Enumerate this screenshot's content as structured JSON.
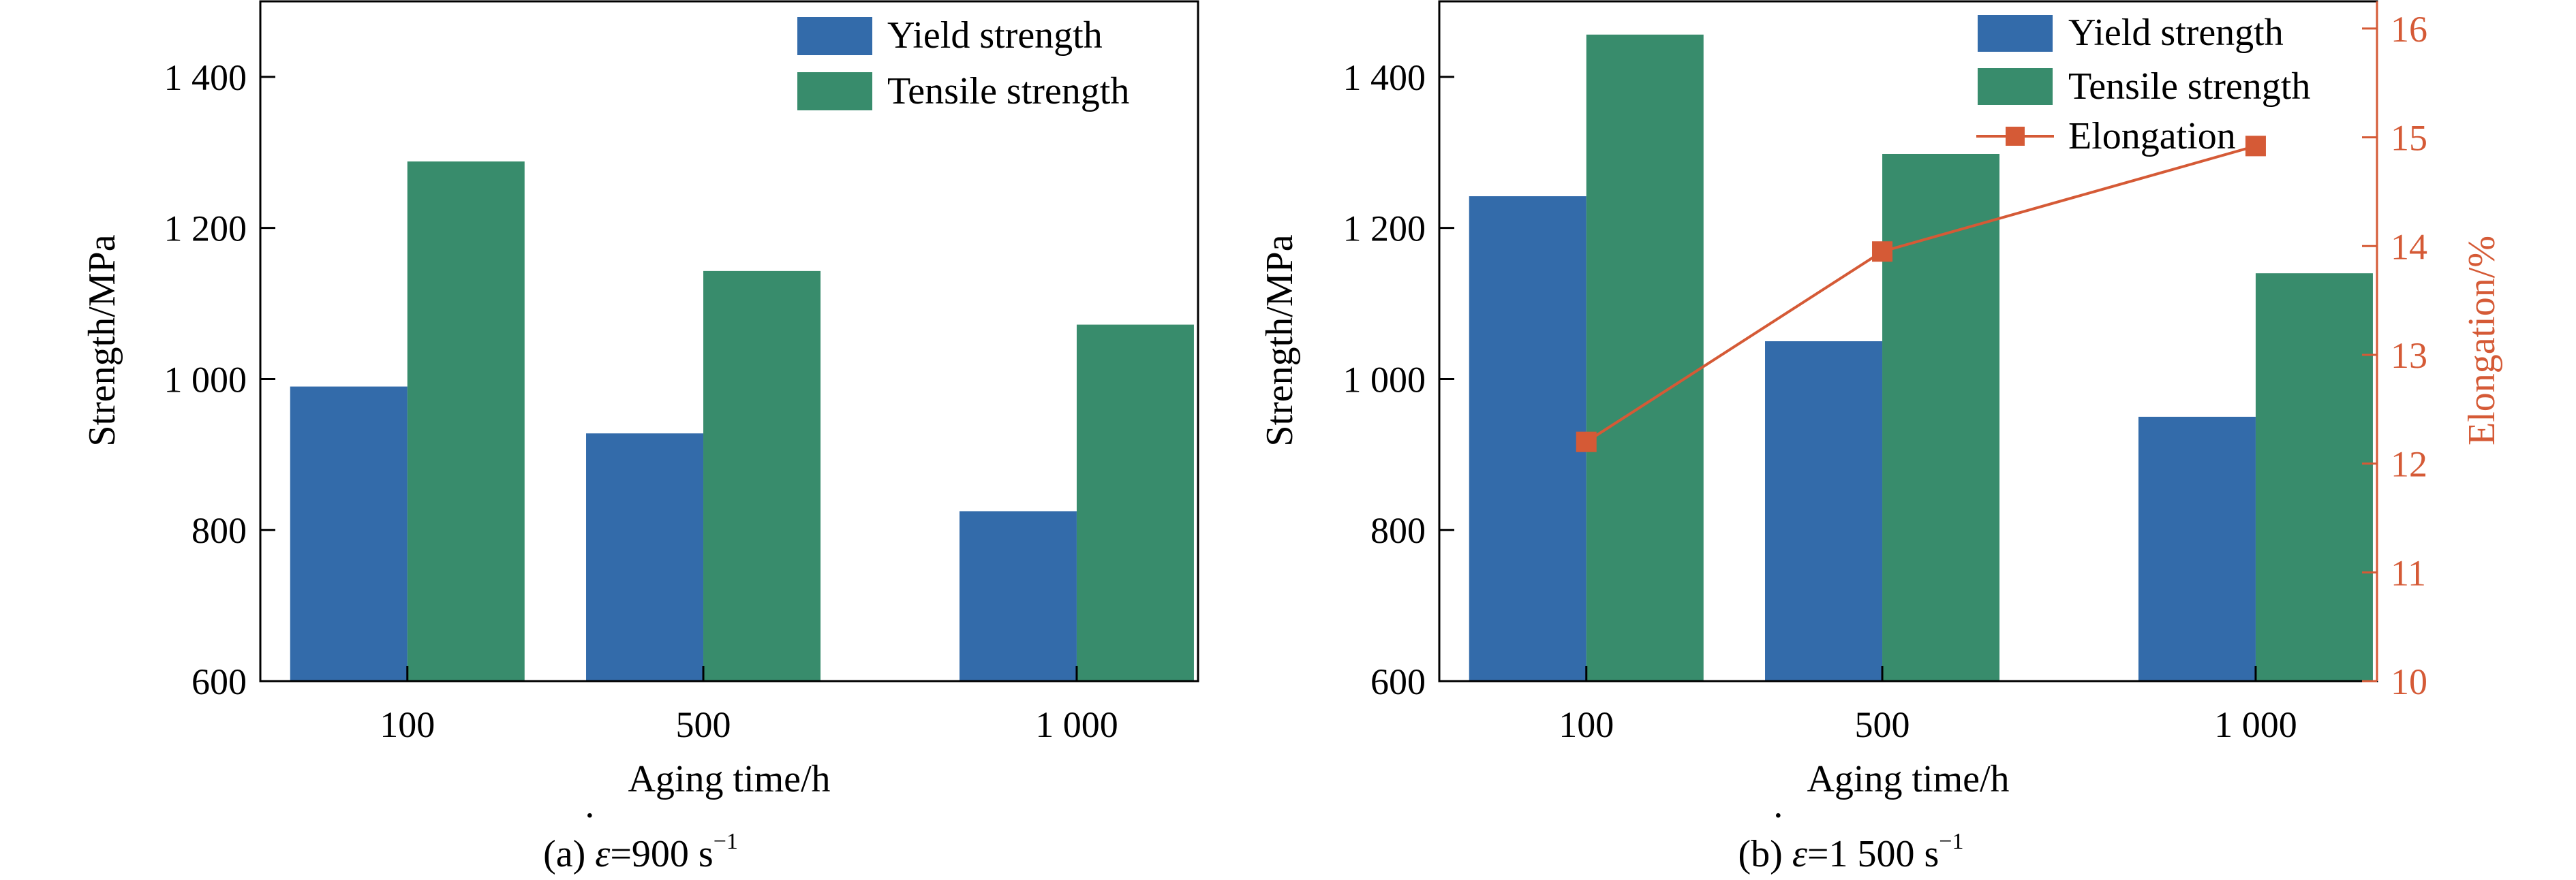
{
  "colors": {
    "yield": "#336BAA",
    "tensile": "#388C6C",
    "elongation": "#D55A36",
    "axis": "#000000"
  },
  "chart_data": [
    {
      "type": "bar",
      "caption": {
        "prefix": "(a) ",
        "symbol": "ε",
        "value": "=900 s",
        "exponent": "−1"
      },
      "xlabel": "Aging time/h",
      "ylabel": "Strength/MPa",
      "categories": [
        "100",
        "500",
        "1 000"
      ],
      "ylim": [
        600,
        1500
      ],
      "yticks": [
        600,
        800,
        1000,
        1200,
        1400
      ],
      "ytick_labels": [
        "600",
        "800",
        "1 000",
        "1 200",
        "1 400"
      ],
      "legend_position": "top-right",
      "series": [
        {
          "name": "Yield strength",
          "values": [
            990,
            928,
            825
          ]
        },
        {
          "name": "Tensile strength",
          "values": [
            1288,
            1143,
            1072
          ]
        }
      ]
    },
    {
      "type": "bar",
      "caption": {
        "prefix": "(b) ",
        "symbol": "ε",
        "value": "=1 500 s",
        "exponent": "−1"
      },
      "xlabel": "Aging time/h",
      "ylabel": "Strength/MPa",
      "y2label": "Elongation/%",
      "categories": [
        "100",
        "500",
        "1 000"
      ],
      "ylim": [
        600,
        1500
      ],
      "y2lim": [
        10,
        16.25
      ],
      "yticks": [
        600,
        800,
        1000,
        1200,
        1400
      ],
      "ytick_labels": [
        "600",
        "800",
        "1 000",
        "1 200",
        "1 400"
      ],
      "y2ticks": [
        10,
        11,
        12,
        13,
        14,
        15,
        16
      ],
      "legend_position": "top-right",
      "series": [
        {
          "name": "Yield strength",
          "values": [
            1242,
            1050,
            950
          ]
        },
        {
          "name": "Tensile strength",
          "values": [
            1456,
            1298,
            1140
          ]
        },
        {
          "name": "Elongation",
          "axis": "right",
          "kind": "line",
          "values": [
            12.2,
            13.95,
            14.92
          ]
        }
      ]
    }
  ]
}
